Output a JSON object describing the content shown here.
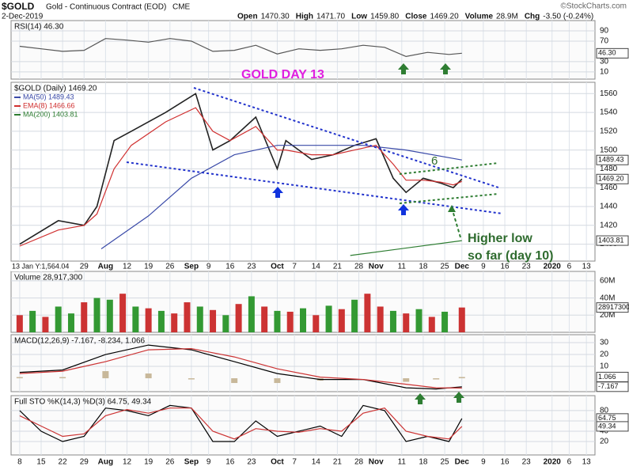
{
  "header": {
    "symbol": "$GOLD",
    "description": "Gold - Continuous Contract (EOD)",
    "exchange": "CME",
    "date": "2-Dec-2019",
    "source": "©StockCharts.com",
    "quote": [
      {
        "label": "Open",
        "value": "1470.30"
      },
      {
        "label": "High",
        "value": "1471.70"
      },
      {
        "label": "Low",
        "value": "1459.80"
      },
      {
        "label": "Close",
        "value": "1469.20"
      },
      {
        "label": "Volume",
        "value": "28.9M"
      },
      {
        "label": "Chg",
        "value": "-3.50 (-0.24%)"
      }
    ]
  },
  "annotations": {
    "title": "GOLD DAY 13",
    "count": "6",
    "note": [
      "Higher low",
      "so far (day 10)"
    ]
  },
  "chart_data": [
    {
      "type": "line",
      "label": "RSI(14) 46.30",
      "xlim": [
        -2,
        134
      ],
      "ylim": [
        -4,
        110
      ],
      "yticks": [
        90,
        70,
        30,
        10
      ],
      "tags": [
        {
          "value": 46.3,
          "label": "46.30"
        }
      ],
      "series": [
        {
          "color": "#555555",
          "x": [
            0,
            5,
            10,
            15,
            20,
            25,
            30,
            35,
            40,
            45,
            50,
            55,
            60,
            65,
            70,
            75,
            80,
            85,
            90,
            95,
            100,
            103
          ],
          "values": [
            60,
            55,
            50,
            52,
            75,
            72,
            68,
            75,
            70,
            50,
            52,
            62,
            45,
            55,
            52,
            55,
            62,
            58,
            40,
            48,
            44,
            46.3
          ]
        }
      ]
    },
    {
      "type": "line",
      "label": "$GOLD (Daily) 1469.20",
      "note": "13 Jan Y:1,564.04",
      "xlim": [
        -2,
        134
      ],
      "ylim": [
        1382,
        1572
      ],
      "yticks": [
        1560,
        1540,
        1520,
        1500,
        1480,
        1460,
        1440,
        1420,
        1400
      ],
      "xticks": [
        {
          "value": 0,
          "label": "8"
        },
        {
          "value": 5,
          "label": "15"
        },
        {
          "value": 10,
          "label": "22"
        },
        {
          "value": 15,
          "label": "29"
        },
        {
          "value": 20,
          "label": "Aug"
        },
        {
          "value": 25,
          "label": "12"
        },
        {
          "value": 30,
          "label": "19"
        },
        {
          "value": 35,
          "label": "26"
        },
        {
          "value": 40,
          "label": "Sep"
        },
        {
          "value": 44,
          "label": "9"
        },
        {
          "value": 49,
          "label": "16"
        },
        {
          "value": 54,
          "label": "23"
        },
        {
          "value": 60,
          "label": "Oct"
        },
        {
          "value": 64,
          "label": "7"
        },
        {
          "value": 69,
          "label": "14"
        },
        {
          "value": 74,
          "label": "21"
        },
        {
          "value": 79,
          "label": "28"
        },
        {
          "value": 83,
          "label": "Nov"
        },
        {
          "value": 89,
          "label": "11"
        },
        {
          "value": 94,
          "label": "18"
        },
        {
          "value": 99,
          "label": "25"
        },
        {
          "value": 103,
          "label": "Dec"
        },
        {
          "value": 108,
          "label": "9"
        },
        {
          "value": 113,
          "label": "16"
        },
        {
          "value": 118,
          "label": "23"
        },
        {
          "value": 124,
          "label": "2020"
        },
        {
          "value": 128,
          "label": "6"
        },
        {
          "value": 132,
          "label": "13"
        }
      ],
      "tags": [
        {
          "value": 1489.43,
          "label": "1489.43"
        },
        {
          "value": 1469.2,
          "label": "1469.20"
        },
        {
          "value": 1403.81,
          "label": "1403.81"
        }
      ],
      "series": [
        {
          "color": "#222222",
          "x": [
            0,
            9,
            15,
            18,
            22,
            26,
            34,
            41,
            45,
            49,
            55,
            60,
            62,
            68,
            73,
            78,
            83,
            87,
            90,
            94,
            98,
            101,
            103
          ],
          "values": [
            1400,
            1425,
            1420,
            1440,
            1510,
            1520,
            1540,
            1560,
            1500,
            1510,
            1535,
            1480,
            1510,
            1490,
            1495,
            1505,
            1512,
            1470,
            1455,
            1470,
            1465,
            1460,
            1469.2
          ]
        },
        {
          "name": "MA(50) 1489.43",
          "color": "#3a4aa8",
          "x": [
            19,
            30,
            40,
            50,
            60,
            70,
            80,
            90,
            103
          ],
          "values": [
            1395,
            1430,
            1470,
            1495,
            1505,
            1505,
            1505,
            1500,
            1489.43
          ]
        },
        {
          "name": "EMA(8) 1466.66",
          "color": "#d03030",
          "x": [
            0,
            9,
            15,
            18,
            22,
            26,
            34,
            41,
            45,
            49,
            55,
            60,
            62,
            68,
            73,
            78,
            83,
            87,
            90,
            94,
            98,
            101,
            103
          ],
          "values": [
            1398,
            1415,
            1420,
            1432,
            1480,
            1505,
            1530,
            1545,
            1520,
            1510,
            1525,
            1500,
            1500,
            1495,
            1495,
            1500,
            1505,
            1485,
            1468,
            1468,
            1466,
            1463,
            1466.66
          ]
        },
        {
          "name": "MA(200) 1403.81",
          "color": "#2e7d32",
          "x": [
            77,
            103
          ],
          "values": [
            1388,
            1403.81
          ]
        }
      ]
    },
    {
      "type": "bar",
      "label": "Volume 28,917,300",
      "xlim": [
        -2,
        134
      ],
      "ylim": [
        0,
        71000000
      ],
      "yticks": [
        {
          "value": 60000000,
          "label": "60M"
        },
        {
          "value": 40000000,
          "label": "40M"
        },
        {
          "value": 20000000,
          "label": "20M"
        }
      ],
      "tags": [
        28917300
      ],
      "x": [
        0,
        3,
        6,
        9,
        12,
        15,
        18,
        21,
        24,
        27,
        30,
        33,
        36,
        39,
        42,
        45,
        48,
        51,
        54,
        57,
        60,
        63,
        66,
        69,
        72,
        75,
        78,
        81,
        84,
        87,
        90,
        93,
        96,
        99,
        103
      ],
      "values": [
        20000000,
        25000000,
        18000000,
        30000000,
        22000000,
        35000000,
        40000000,
        38000000,
        45000000,
        30000000,
        28000000,
        25000000,
        22000000,
        35000000,
        30000000,
        26000000,
        20000000,
        33000000,
        42000000,
        30000000,
        25000000,
        24000000,
        28000000,
        20000000,
        31000000,
        27000000,
        38000000,
        45000000,
        30000000,
        25000000,
        22000000,
        27000000,
        18000000,
        24000000,
        28917300
      ],
      "colors": [
        "#c33",
        "#393",
        "#c33",
        "#393",
        "#393",
        "#c33",
        "#393",
        "#393",
        "#c33",
        "#393",
        "#c33",
        "#393",
        "#c33",
        "#c33",
        "#393",
        "#c33",
        "#393",
        "#c33",
        "#393",
        "#c33",
        "#393",
        "#c33",
        "#393",
        "#c33",
        "#393",
        "#c33",
        "#393",
        "#c33",
        "#c33",
        "#393",
        "#c33",
        "#393",
        "#c33",
        "#393",
        "#c33"
      ]
    },
    {
      "type": "line",
      "label": "MACD(12,26,9) -7.167, -8.234, 1.066",
      "xlim": [
        -2,
        134
      ],
      "ylim": [
        -11.3,
        36.7
      ],
      "yticks": [
        30,
        20,
        10
      ],
      "tags": [
        {
          "value": 1.066,
          "label": "1.066"
        },
        {
          "value": -7.167,
          "label": "-7.167"
        }
      ],
      "histogram": {
        "color": "#c8b89a",
        "x": [
          0,
          10,
          20,
          30,
          40,
          50,
          60,
          70,
          80,
          90,
          97,
          103
        ],
        "values": [
          1,
          1,
          6,
          4,
          -1,
          -4,
          -4,
          -2,
          0,
          -3,
          -1,
          1.066
        ]
      },
      "series": [
        {
          "color": "#000000",
          "x": [
            0,
            10,
            20,
            30,
            40,
            50,
            60,
            70,
            80,
            90,
            97,
            103
          ],
          "values": [
            5,
            7,
            20,
            28,
            24,
            14,
            4,
            -1,
            -1,
            -8,
            -9,
            -7.167
          ]
        },
        {
          "color": "#cc3333",
          "x": [
            0,
            10,
            20,
            30,
            40,
            50,
            60,
            70,
            80,
            90,
            97,
            103
          ],
          "values": [
            4,
            6,
            14,
            24,
            25,
            18,
            8,
            1,
            -1,
            -5,
            -8,
            -8.234
          ]
        }
      ]
    },
    {
      "type": "line",
      "label": "Full STO %K(14,3) %D(3) 64.75, 49.34",
      "xlim": [
        -2,
        134
      ],
      "ylim": [
        -6,
        109
      ],
      "yticks": [
        80,
        60,
        40,
        20
      ],
      "tags": [
        {
          "value": 64.75,
          "label": "64.75"
        },
        {
          "value": 49.34,
          "label": "49.34"
        }
      ],
      "series": [
        {
          "color": "#000000",
          "x": [
            0,
            5,
            10,
            15,
            20,
            25,
            30,
            35,
            40,
            45,
            50,
            55,
            60,
            65,
            70,
            75,
            80,
            85,
            90,
            95,
            100,
            103
          ],
          "values": [
            80,
            40,
            20,
            30,
            85,
            80,
            70,
            90,
            85,
            20,
            20,
            60,
            30,
            40,
            50,
            30,
            90,
            80,
            20,
            30,
            20,
            64.75
          ]
        },
        {
          "color": "#cc3333",
          "x": [
            0,
            5,
            10,
            15,
            20,
            25,
            30,
            35,
            40,
            45,
            50,
            55,
            60,
            65,
            70,
            75,
            80,
            85,
            90,
            95,
            100,
            103
          ],
          "values": [
            70,
            50,
            30,
            35,
            70,
            82,
            75,
            85,
            85,
            40,
            25,
            45,
            40,
            38,
            45,
            40,
            75,
            85,
            40,
            30,
            25,
            49.34
          ]
        }
      ]
    }
  ]
}
